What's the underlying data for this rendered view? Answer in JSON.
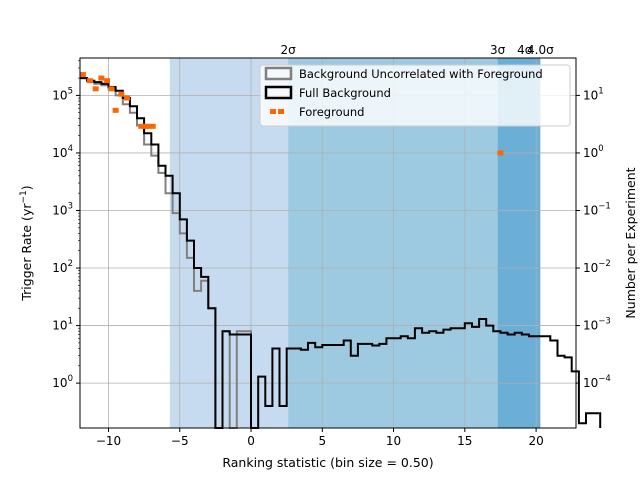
{
  "chart_data": {
    "type": "step",
    "xlabel": "Ranking statistic (bin size = 0.50)",
    "ylabel": "Trigger Rate (yr$^{-1}$)",
    "ylabel_base": "Trigger Rate (yr",
    "ylabel_sup": "−1",
    "ylabel_close": ")",
    "ylabel_right": "Number per Experiment",
    "xlim": [
      -12,
      22.8
    ],
    "ylim_log10": [
      -0.78,
      5.65
    ],
    "y2lim_log10": [
      -4.78,
      1.65
    ],
    "yscale": "log",
    "grid": true,
    "legend_position": "upper-right",
    "x_ticks": [
      -10,
      -5,
      0,
      5,
      10,
      15,
      20
    ],
    "y_ticks": [
      "10^0",
      "10^1",
      "10^2",
      "10^3",
      "10^4",
      "10^5"
    ],
    "y2_ticks": [
      "10^-4",
      "10^-3",
      "10^-2",
      "10^-1",
      "10^0",
      "10^1"
    ],
    "sigma_bands": [
      {
        "from": -5.7,
        "to": 2.6,
        "color": "#c6dbef"
      },
      {
        "from": 2.6,
        "to": 17.3,
        "color": "#9ecae1"
      },
      {
        "from": 17.3,
        "to": 20.3,
        "color": "#6baed6"
      }
    ],
    "sigma_labels": [
      {
        "x": 2.6,
        "text": "2σ"
      },
      {
        "x": 17.3,
        "text": "3σ"
      },
      {
        "x": 19.2,
        "text": "4σ"
      },
      {
        "x": 20.3,
        "text": "4.0σ"
      }
    ],
    "series": [
      {
        "name": "Background Uncorrelated with Foreground",
        "color": "#808080",
        "bin_start": -12,
        "bin_width": 0.5,
        "values": [
          200000,
          180000,
          160000,
          150000,
          130000,
          100000,
          70000,
          50000,
          30000,
          14000,
          9000,
          4500,
          2000,
          900,
          400,
          150,
          40,
          60,
          20,
          0,
          8,
          0,
          8,
          8
        ]
      },
      {
        "name": "Full Background",
        "color": "#000000",
        "bin_start": -12,
        "bin_width": 0.5,
        "values": [
          200000,
          180000,
          170000,
          160000,
          140000,
          120000,
          90000,
          65000,
          40000,
          22000,
          14000,
          6000,
          4000,
          2000,
          700,
          300,
          100,
          70,
          20,
          0,
          8,
          7,
          7,
          7,
          0,
          1.3,
          0.4,
          4,
          0.4,
          4,
          4,
          3.8,
          5,
          4.2,
          4.6,
          4.6,
          4.6,
          5.5,
          3,
          4.8,
          4.8,
          4.5,
          4.8,
          6,
          6,
          6.5,
          6,
          9,
          7.5,
          8,
          7.5,
          8.5,
          9,
          9,
          11,
          9.5,
          13,
          10,
          8,
          7.5,
          7,
          7.5,
          7,
          6.5,
          6.5,
          6.5,
          5.5,
          3,
          2.8,
          1.6,
          0.2,
          0.3,
          0.3
        ]
      },
      {
        "name": "Foreground",
        "color": "#ff6600",
        "kind": "markers",
        "x": [
          -11.8,
          -11.3,
          -10.9,
          -10.5,
          -10.1,
          -9.8,
          -9.5,
          -9.1,
          -8.7,
          -7.7,
          -7.4,
          -7.2,
          -6.9,
          17.5
        ],
        "values": [
          230000,
          180000,
          130000,
          200000,
          180000,
          130000,
          55000,
          105000,
          90000,
          29000,
          29000,
          29000,
          29000,
          10000
        ]
      }
    ]
  }
}
